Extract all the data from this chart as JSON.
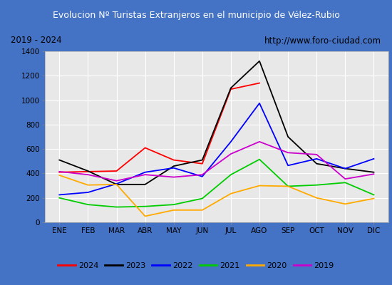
{
  "title": "Evolucion Nº Turistas Extranjeros en el municipio de Vélez-Rubio",
  "subtitle_left": "2019 - 2024",
  "subtitle_right": "http://www.foro-ciudad.com",
  "months": [
    "ENE",
    "FEB",
    "MAR",
    "ABR",
    "MAY",
    "JUN",
    "JUL",
    "AGO",
    "SEP",
    "OCT",
    "NOV",
    "DIC"
  ],
  "series": {
    "2024": [
      410,
      415,
      420,
      610,
      510,
      480,
      1090,
      1140,
      null,
      null,
      null,
      null
    ],
    "2023": [
      510,
      420,
      310,
      310,
      460,
      510,
      1100,
      1320,
      700,
      480,
      440,
      410
    ],
    "2022": [
      225,
      245,
      315,
      410,
      445,
      375,
      660,
      975,
      465,
      520,
      440,
      520
    ],
    "2021": [
      200,
      145,
      125,
      130,
      145,
      195,
      390,
      515,
      295,
      305,
      325,
      225
    ],
    "2020": [
      385,
      305,
      310,
      50,
      100,
      100,
      235,
      300,
      295,
      200,
      150,
      195
    ],
    "2019": [
      415,
      390,
      340,
      390,
      370,
      390,
      560,
      660,
      570,
      555,
      355,
      395
    ]
  },
  "colors": {
    "2024": "#ff0000",
    "2023": "#000000",
    "2022": "#0000ff",
    "2021": "#00cc00",
    "2020": "#ffaa00",
    "2019": "#cc00cc"
  },
  "ylim": [
    0,
    1400
  ],
  "yticks": [
    0,
    200,
    400,
    600,
    800,
    1000,
    1200,
    1400
  ],
  "title_bg": "#4472c4",
  "title_color": "#ffffff",
  "plot_bg": "#e8e8e8",
  "grid_color": "#ffffff",
  "outer_bg": "#4472c4",
  "legend_border": "#888888",
  "info_border": "#888888"
}
